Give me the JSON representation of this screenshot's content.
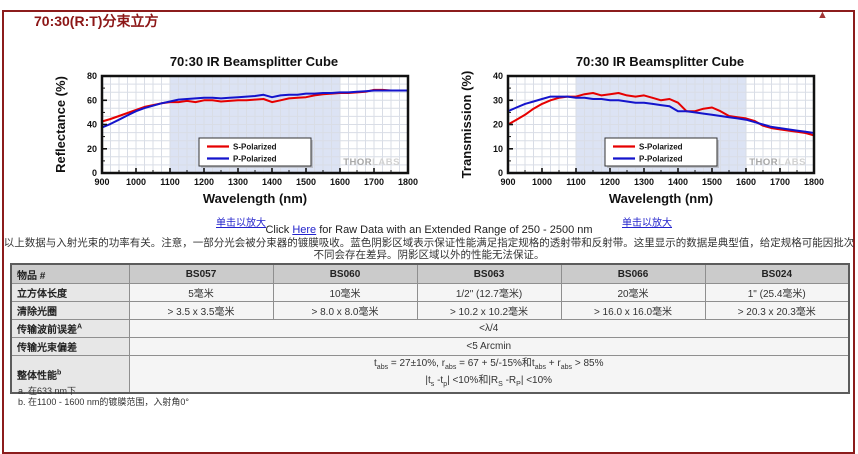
{
  "page": {
    "title": "70:30(R:T)分束立方",
    "back_to_top_icon": "▲"
  },
  "links": {
    "enlarge": "单击以放大",
    "raw_prefix": "Click ",
    "raw_link": "Here",
    "raw_suffix": " for Raw Data with an Extended Range of 250 - 2500 nm"
  },
  "description": {
    "line1": "以上数据与入射光束的功率有关。注意，一部分光会被分束器的镀膜吸收。蓝色阴影区域表示保证性能满足指定规格的透射带和反射带。这里显示的数据是典型值，给定规格可能因批次",
    "line2": "不同会存在差异。阴影区域以外的性能无法保证。"
  },
  "chart_data": [
    {
      "type": "line",
      "title": "70:30 IR Beamsplitter Cube",
      "xlabel": "Wavelength (nm)",
      "ylabel": "Reflectance (%)",
      "xlim": [
        900,
        1800
      ],
      "ylim": [
        0,
        80
      ],
      "xticks": [
        900,
        1000,
        1100,
        1200,
        1300,
        1400,
        1500,
        1600,
        1700,
        1800
      ],
      "yticks": [
        0,
        20,
        40,
        60,
        80
      ],
      "band_x": [
        1100,
        1600
      ],
      "band_color": "#dce3f4",
      "grid_color": "#d9dde6",
      "legend_position": "bottom-center",
      "watermark": "THORLABS",
      "x": [
        900,
        925,
        950,
        975,
        1000,
        1025,
        1050,
        1075,
        1100,
        1125,
        1150,
        1175,
        1200,
        1225,
        1250,
        1275,
        1300,
        1325,
        1350,
        1375,
        1400,
        1425,
        1450,
        1475,
        1500,
        1525,
        1550,
        1575,
        1600,
        1625,
        1650,
        1675,
        1700,
        1725,
        1750,
        1775,
        1800
      ],
      "series": [
        {
          "name": "S-Polarized",
          "color": "#e60000",
          "values": [
            42.5,
            44.5,
            47,
            49.5,
            52,
            54.5,
            56,
            57.5,
            58.5,
            58.5,
            59.5,
            58.5,
            60,
            60,
            59,
            59.5,
            60,
            60,
            60.5,
            61,
            58.5,
            60,
            61.5,
            62,
            62.5,
            64,
            65,
            65.5,
            66,
            66,
            66.5,
            67,
            68.5,
            68.5,
            68,
            68,
            68
          ]
        },
        {
          "name": "P-Polarized",
          "color": "#1414cc",
          "values": [
            37.5,
            40.5,
            44,
            47.5,
            51,
            53.5,
            55.5,
            57.5,
            59,
            60.5,
            61,
            61.5,
            62,
            62,
            61.5,
            62,
            62.5,
            63,
            63.5,
            64.5,
            62.5,
            64,
            64.5,
            64.5,
            65.5,
            65.5,
            66,
            66,
            66.5,
            66.5,
            67,
            67.5,
            68,
            68,
            68,
            68,
            68
          ]
        }
      ]
    },
    {
      "type": "line",
      "title": "70:30 IR Beamsplitter Cube",
      "xlabel": "Wavelength (nm)",
      "ylabel": "Transmission (%)",
      "xlim": [
        900,
        1800
      ],
      "ylim": [
        0,
        40
      ],
      "xticks": [
        900,
        1000,
        1100,
        1200,
        1300,
        1400,
        1500,
        1600,
        1700,
        1800
      ],
      "yticks": [
        0,
        10,
        20,
        30,
        40
      ],
      "band_x": [
        1100,
        1600
      ],
      "band_color": "#dce3f4",
      "grid_color": "#d9dde6",
      "legend_position": "bottom-center",
      "watermark": "THORLABS",
      "x": [
        900,
        925,
        950,
        975,
        1000,
        1025,
        1050,
        1075,
        1100,
        1125,
        1150,
        1175,
        1200,
        1225,
        1250,
        1275,
        1300,
        1325,
        1350,
        1375,
        1400,
        1425,
        1450,
        1475,
        1500,
        1525,
        1550,
        1575,
        1600,
        1625,
        1650,
        1675,
        1700,
        1725,
        1750,
        1775,
        1800
      ],
      "series": [
        {
          "name": "S-Polarized",
          "color": "#e60000",
          "values": [
            20,
            22,
            24,
            26.5,
            28.5,
            30,
            31,
            31.5,
            31.5,
            32.5,
            33,
            32,
            32.5,
            33,
            32,
            31.5,
            32,
            31,
            30,
            30.5,
            29,
            25.5,
            25.5,
            26.5,
            27,
            25.5,
            23.5,
            23,
            22.5,
            21.5,
            19.5,
            18.5,
            18,
            17.5,
            17,
            16.5,
            15.5
          ]
        },
        {
          "name": "P-Polarized",
          "color": "#1414cc",
          "values": [
            25.5,
            27,
            28.5,
            29.5,
            30.5,
            31.5,
            31.5,
            31.5,
            31,
            31,
            30.5,
            30.5,
            30,
            30,
            29.5,
            29,
            29,
            28.5,
            28,
            27.5,
            25.5,
            25.5,
            25,
            24.5,
            24,
            23.5,
            23,
            22.5,
            22,
            21,
            20,
            19,
            18.5,
            18,
            17.5,
            17,
            16.5
          ]
        }
      ]
    }
  ],
  "table": {
    "header": [
      "物品 #",
      "BS057",
      "BS060",
      "BS063",
      "BS066",
      "BS024"
    ],
    "rows": [
      {
        "label": "立方体长度",
        "cells": [
          "5毫米",
          "10毫米",
          "1/2\" (12.7毫米)",
          "20毫米",
          "1\" (25.4毫米)"
        ]
      },
      {
        "label": "清除光圈",
        "cells": [
          "> 3.5 x 3.5毫米",
          "> 8.0 x 8.0毫米",
          "> 10.2 x 10.2毫米",
          "> 16.0 x 16.0毫米",
          "> 20.3 x 20.3毫米"
        ]
      },
      {
        "label": "传输波前误差",
        "sup": "A",
        "span": "<λ/4"
      },
      {
        "label": "传输光束偏差",
        "sup": "",
        "span": "<5 Arcmin"
      },
      {
        "label": "整体性能",
        "sup": "b"
      }
    ],
    "performance": {
      "l1": [
        "t",
        "abs",
        " = 27±10%, ",
        "r",
        "abs",
        " = 67 + 5/-15%和t",
        "abs",
        " + r",
        "abs",
        " > 85%"
      ],
      "l2": [
        "|t",
        "s",
        " -t",
        "p",
        "| <10%和|R",
        "S",
        " -R",
        "P",
        "| <10%"
      ]
    }
  },
  "footnotes": [
    "a. 在633 nm下",
    "b. 在1100 - 1600 nm的镀膜范围，入射角0°"
  ]
}
